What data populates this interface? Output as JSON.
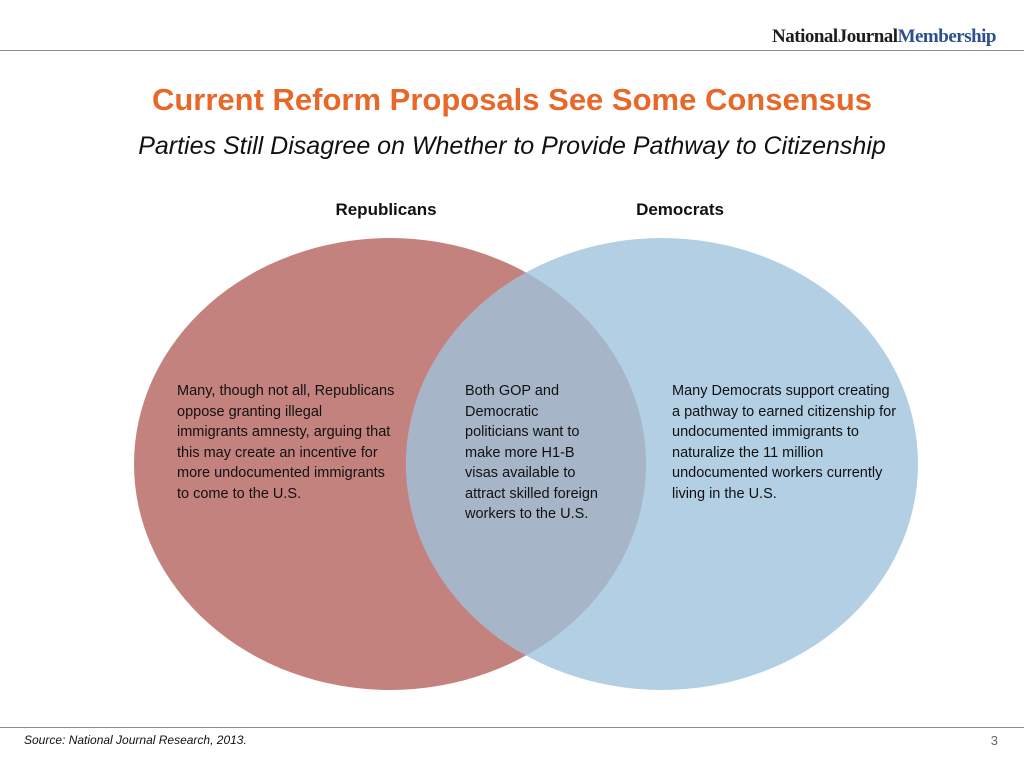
{
  "header": {
    "brand_part1": "NationalJournal",
    "brand_part2": "Membership"
  },
  "title": "Current Reform Proposals See Some Consensus",
  "subtitle": "Parties Still Disagree on Whether to Provide Pathway to Citizenship",
  "venn": {
    "left_label": "Republicans",
    "right_label": "Democrats",
    "left_text": "Many, though not all, Republicans oppose granting illegal immigrants amnesty, arguing that this may create an incentive for more undocumented immigrants to come to the U.S.",
    "center_text": "Both GOP and Democratic politicians want to make more H1-B visas available to attract skilled foreign workers to the U.S.",
    "right_text": "Many Democrats support creating a pathway to earned citizenship for undocumented immigrants to naturalize the 11 million undocumented workers currently living in the U.S.",
    "colors": {
      "left": "#c4827f",
      "right": "#b3cfe3",
      "overlap": "#a6b5c7"
    }
  },
  "footer": {
    "source": "Source: National Journal Research, 2013.",
    "page_number": "3"
  }
}
